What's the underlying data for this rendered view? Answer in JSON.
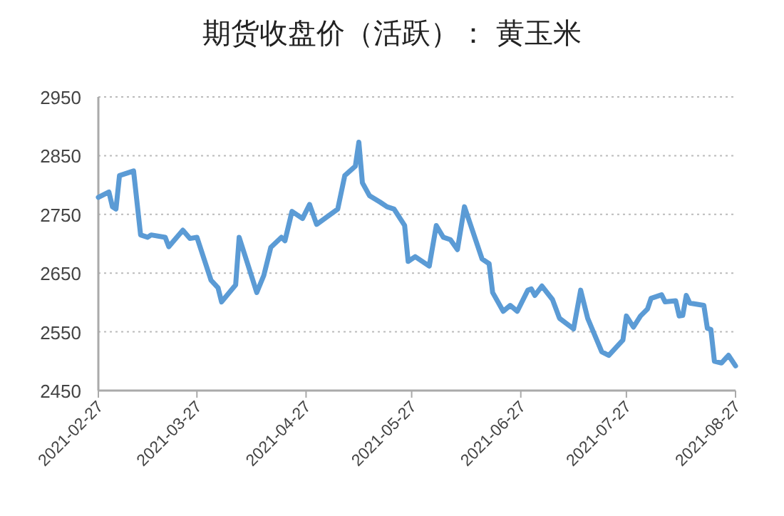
{
  "chart_data": {
    "type": "line",
    "title": "期货收盘价（活跃）： 黄玉米",
    "x": [
      "2021-02-27",
      "2021-03-02",
      "2021-03-03",
      "2021-03-04",
      "2021-03-05",
      "2021-03-09",
      "2021-03-11",
      "2021-03-13",
      "2021-03-14",
      "2021-03-18",
      "2021-03-19",
      "2021-03-23",
      "2021-03-25",
      "2021-03-27",
      "2021-03-31",
      "2021-04-02",
      "2021-04-03",
      "2021-04-07",
      "2021-04-08",
      "2021-04-13",
      "2021-04-15",
      "2021-04-17",
      "2021-04-20",
      "2021-04-21",
      "2021-04-23",
      "2021-04-26",
      "2021-04-28",
      "2021-04-30",
      "2021-05-06",
      "2021-05-08",
      "2021-05-11",
      "2021-05-12",
      "2021-05-13",
      "2021-05-15",
      "2021-05-18",
      "2021-05-20",
      "2021-05-22",
      "2021-05-25",
      "2021-05-26",
      "2021-05-28",
      "2021-06-01",
      "2021-06-03",
      "2021-06-05",
      "2021-06-07",
      "2021-06-09",
      "2021-06-11",
      "2021-06-16",
      "2021-06-18",
      "2021-06-19",
      "2021-06-22",
      "2021-06-24",
      "2021-06-26",
      "2021-06-29",
      "2021-06-30",
      "2021-07-01",
      "2021-07-03",
      "2021-07-06",
      "2021-07-08",
      "2021-07-12",
      "2021-07-14",
      "2021-07-16",
      "2021-07-20",
      "2021-07-22",
      "2021-07-26",
      "2021-07-27",
      "2021-07-29",
      "2021-07-31",
      "2021-08-02",
      "2021-08-03",
      "2021-08-06",
      "2021-08-07",
      "2021-08-10",
      "2021-08-11",
      "2021-08-12",
      "2021-08-13",
      "2021-08-14",
      "2021-08-18",
      "2021-08-19",
      "2021-08-20",
      "2021-08-21",
      "2021-08-23",
      "2021-08-25",
      "2021-08-27"
    ],
    "series": [
      {
        "color": "#5b9bd5",
        "values": [
          2779,
          2788,
          2763,
          2759,
          2816,
          2824,
          2715,
          2711,
          2715,
          2711,
          2695,
          2723,
          2709,
          2711,
          2638,
          2625,
          2601,
          2630,
          2711,
          2617,
          2646,
          2694,
          2711,
          2705,
          2755,
          2743,
          2767,
          2733,
          2759,
          2816,
          2832,
          2873,
          2804,
          2782,
          2771,
          2763,
          2759,
          2731,
          2670,
          2678,
          2662,
          2731,
          2711,
          2707,
          2690,
          2763,
          2674,
          2666,
          2617,
          2585,
          2595,
          2585,
          2621,
          2623,
          2612,
          2628,
          2605,
          2573,
          2555,
          2621,
          2573,
          2516,
          2510,
          2536,
          2577,
          2558,
          2577,
          2589,
          2607,
          2613,
          2601,
          2603,
          2577,
          2578,
          2612,
          2599,
          2595,
          2556,
          2554,
          2500,
          2497,
          2510,
          2492
        ]
      }
    ],
    "xlim": [
      "2021-02-27",
      "2021-08-27"
    ],
    "xticks": [
      {
        "value": "2021-02-27",
        "label": "2021-02-27"
      },
      {
        "value": "2021-03-27",
        "label": "2021-03-27"
      },
      {
        "value": "2021-04-27",
        "label": "2021-04-27"
      },
      {
        "value": "2021-05-27",
        "label": "2021-05-27"
      },
      {
        "value": "2021-06-27",
        "label": "2021-06-27"
      },
      {
        "value": "2021-07-27",
        "label": "2021-07-27"
      },
      {
        "value": "2021-08-27",
        "label": "2021-08-27"
      }
    ],
    "ylim": [
      2450,
      2950
    ],
    "yticks": [
      2450,
      2550,
      2650,
      2750,
      2850,
      2950
    ],
    "grid": "y",
    "marker": "none",
    "line_style": "solid"
  }
}
